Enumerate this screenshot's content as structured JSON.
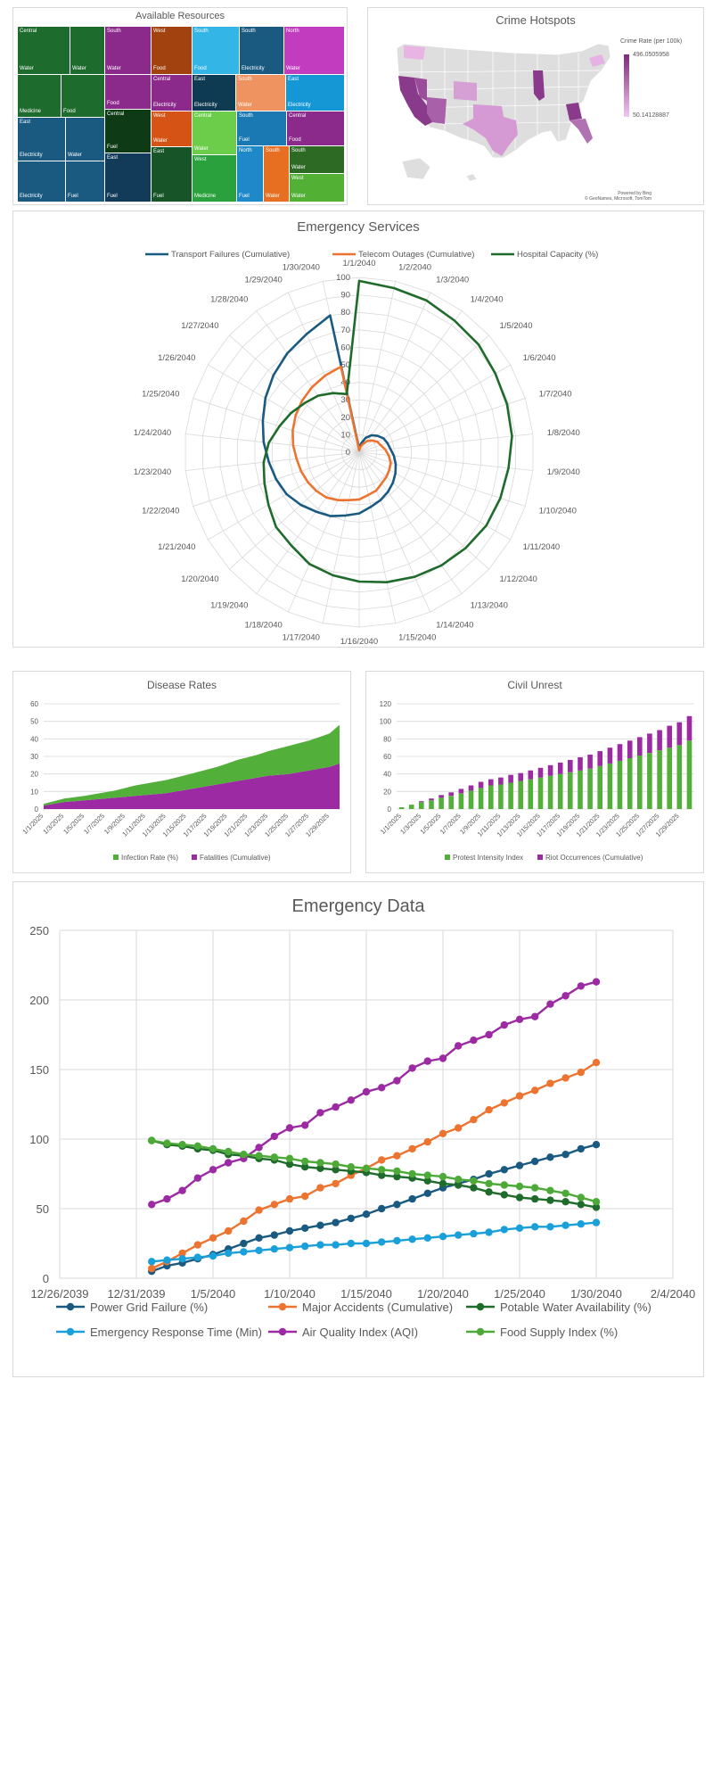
{
  "colors": {
    "region_green": "#1e6b2e",
    "region_purple": "#8b2a8b",
    "region_blue": "#1a5a80",
    "grid": "#d9d9d9",
    "axis_text": "#595959",
    "power": "#1a5a80",
    "accidents": "#ec7430",
    "water": "#1f6b2c",
    "response": "#1aa0d9",
    "aqi": "#9b2aa3",
    "food": "#4daa38",
    "hospital": "#1f6b2c",
    "infection": "#52b03a",
    "fatalities": "#9b2aa3",
    "map_land": "#dedede",
    "map_high": "#7b2c7b",
    "map_low": "#f2c6f0"
  },
  "treemap": {
    "title": "Available Resources",
    "tiles": [
      {
        "label": "Central",
        "sub": "Water",
        "color": "#1e6b2e"
      },
      {
        "label": "",
        "sub": "Water",
        "color": "#1e6b2e"
      },
      {
        "label": "South",
        "sub": "Water",
        "color": "#8b2a8b"
      },
      {
        "label": "West",
        "sub": "Food",
        "color": "#a1420f"
      },
      {
        "label": "South",
        "sub": "Food",
        "color": "#33b5e5"
      },
      {
        "label": "South",
        "sub": "Electricity",
        "color": "#1a5a80"
      },
      {
        "label": "North",
        "sub": "Water",
        "color": "#c23cc0"
      },
      {
        "label": "",
        "sub": "Medicine",
        "color": "#1e6b2e"
      },
      {
        "label": "",
        "sub": "Food",
        "color": "#1e6b2e"
      },
      {
        "label": "",
        "sub": "Food",
        "color": "#8b2a8b"
      },
      {
        "label": "Central",
        "sub": "Electricity",
        "color": "#8b2a8b"
      },
      {
        "label": "East",
        "sub": "Electricity",
        "color": "#0f3b52"
      },
      {
        "label": "South",
        "sub": "Water",
        "color": "#ef9460"
      },
      {
        "label": "East",
        "sub": "Electricity",
        "color": "#1597d6"
      },
      {
        "label": "East",
        "sub": "Electricity",
        "color": "#1a5a80"
      },
      {
        "label": "",
        "sub": "Water",
        "color": "#1a5a80"
      },
      {
        "label": "Central",
        "sub": "Fuel",
        "color": "#0e3a16"
      },
      {
        "label": "West",
        "sub": "Water",
        "color": "#d55315"
      },
      {
        "label": "Central",
        "sub": "Water",
        "color": "#6ccd4a"
      },
      {
        "label": "South",
        "sub": "Fuel",
        "color": "#1a79b3"
      },
      {
        "label": "Central",
        "sub": "Food",
        "color": "#8b2a8b"
      },
      {
        "label": "",
        "sub": "Electricity",
        "color": "#1a5a80"
      },
      {
        "label": "",
        "sub": "Fuel",
        "color": "#1a5a80"
      },
      {
        "label": "East",
        "sub": "Fuel",
        "color": "#123a59"
      },
      {
        "label": "East",
        "sub": "Fuel",
        "color": "#175528"
      },
      {
        "label": "West",
        "sub": "Medicine",
        "color": "#2aa13c"
      },
      {
        "label": "North",
        "sub": "Fuel",
        "color": "#1f88c8"
      },
      {
        "label": "South",
        "sub": "Water",
        "color": "#e76f22"
      },
      {
        "label": "South",
        "sub": "Water",
        "color": "#2d6a24"
      },
      {
        "label": "West",
        "sub": "Water",
        "color": "#52b035"
      }
    ]
  },
  "map": {
    "title": "Crime Hotspots",
    "legend_title": "Crime Rate (per 100k)",
    "legend_max": "496.0505958",
    "legend_min": "50.14128887",
    "credit1": "Powered by Bing",
    "credit2": "© GeoNames, Microsoft, TomTom"
  },
  "radar": {
    "title": "Emergency Services",
    "legend": [
      "Transport Failures (Cumulative)",
      "Telecom Outages (Cumulative)",
      "Hospital Capacity (%)"
    ],
    "rlabels": [
      "0",
      "10",
      "20",
      "30",
      "40",
      "50",
      "60",
      "70",
      "80",
      "90",
      "100"
    ],
    "dates": [
      "1/1/2040",
      "1/2/2040",
      "1/3/2040",
      "1/4/2040",
      "1/5/2040",
      "1/6/2040",
      "1/7/2040",
      "1/8/2040",
      "1/9/2040",
      "1/10/2040",
      "1/11/2040",
      "1/12/2040",
      "1/13/2040",
      "1/14/2040",
      "1/15/2040",
      "1/16/2040",
      "1/17/2040",
      "1/18/2040",
      "1/19/2040",
      "1/20/2040",
      "1/21/2040",
      "1/22/2040",
      "1/23/2040",
      "1/24/2040",
      "1/25/2040",
      "1/26/2040",
      "1/27/2040",
      "1/28/2040",
      "1/29/2040",
      "1/30/2040"
    ]
  },
  "disease": {
    "title": "Disease Rates",
    "yticks": [
      "0",
      "10",
      "20",
      "30",
      "40",
      "50",
      "60"
    ],
    "xticks": [
      "1/1/2025",
      "1/3/2025",
      "1/5/2025",
      "1/7/2025",
      "1/9/2025",
      "1/11/2025",
      "1/13/2025",
      "1/15/2025",
      "1/17/2025",
      "1/19/2025",
      "1/21/2025",
      "1/23/2025",
      "1/25/2025",
      "1/27/2025",
      "1/29/2025"
    ],
    "legend": [
      "Infection Rate (%)",
      "Fatalities (Cumulative)"
    ]
  },
  "unrest": {
    "title": "Civil Unrest",
    "yticks": [
      "0",
      "20",
      "40",
      "60",
      "80",
      "100",
      "120"
    ],
    "xticks": [
      "1/1/2025",
      "1/3/2025",
      "1/5/2025",
      "1/7/2025",
      "1/9/2025",
      "1/11/2025",
      "1/13/2025",
      "1/15/2025",
      "1/17/2025",
      "1/19/2025",
      "1/21/2025",
      "1/23/2025",
      "1/25/2025",
      "1/27/2025",
      "1/29/2025"
    ],
    "legend": [
      "Protest Intensity Index",
      "Riot Occurrences (Cumulative)"
    ]
  },
  "emergency": {
    "title": "Emergency Data",
    "yticks": [
      "0",
      "50",
      "100",
      "150",
      "200",
      "250"
    ],
    "xticks": [
      "12/26/2039",
      "12/31/2039",
      "1/5/2040",
      "1/10/2040",
      "1/15/2040",
      "1/20/2040",
      "1/25/2040",
      "1/30/2040",
      "2/4/2040"
    ],
    "legend": [
      "Power Grid Failure (%)",
      "Major Accidents (Cumulative)",
      "Potable Water Availability (%)",
      "Emergency Response Time (Min)",
      "Air Quality Index (AQI)",
      "Food Supply Index (%)"
    ]
  },
  "chart_data": [
    {
      "type": "treemap",
      "title": "Available Resources",
      "note": "hierarchical resource tiles by region and resource type"
    },
    {
      "type": "map",
      "title": "Crime Hotspots",
      "legend_title": "Crime Rate (per 100k)",
      "range": [
        50.14128887,
        496.0505958
      ],
      "highlighted_states": [
        "Washington",
        "California",
        "Nevada",
        "Arizona",
        "Colorado",
        "Texas",
        "Illinois",
        "Georgia",
        "Florida",
        "New York"
      ]
    },
    {
      "type": "radar",
      "title": "Emergency Services",
      "categories": [
        "1/1/2040",
        "1/2/2040",
        "1/3/2040",
        "1/4/2040",
        "1/5/2040",
        "1/6/2040",
        "1/7/2040",
        "1/8/2040",
        "1/9/2040",
        "1/10/2040",
        "1/11/2040",
        "1/12/2040",
        "1/13/2040",
        "1/14/2040",
        "1/15/2040",
        "1/16/2040",
        "1/17/2040",
        "1/18/2040",
        "1/19/2040",
        "1/20/2040",
        "1/21/2040",
        "1/22/2040",
        "1/23/2040",
        "1/24/2040",
        "1/25/2040",
        "1/26/2040",
        "1/27/2040",
        "1/28/2040",
        "1/29/2040",
        "1/30/2040"
      ],
      "rlim": [
        0,
        100
      ],
      "series": [
        {
          "name": "Transport Failures (Cumulative)",
          "values": [
            2,
            5,
            9,
            12,
            14,
            16,
            17,
            18,
            20,
            22,
            24,
            26,
            28,
            30,
            32,
            35,
            37,
            40,
            42,
            45,
            48,
            50,
            52,
            55,
            58,
            62,
            66,
            70,
            74,
            80
          ]
        },
        {
          "name": "Telecom Outages (Cumulative)",
          "values": [
            1,
            3,
            5,
            8,
            10,
            12,
            13,
            15,
            17,
            19,
            20,
            21,
            22,
            24,
            25,
            27,
            28,
            30,
            32,
            33,
            34,
            35,
            36,
            38,
            40,
            42,
            44,
            46,
            48,
            50
          ]
        },
        {
          "name": "Hospital Capacity (%)",
          "values": [
            98,
            96,
            95,
            93,
            92,
            90,
            89,
            88,
            86,
            85,
            84,
            82,
            80,
            78,
            76,
            74,
            72,
            70,
            66,
            64,
            60,
            57,
            55,
            52,
            48,
            45,
            42,
            40,
            37,
            34
          ]
        }
      ]
    },
    {
      "type": "area",
      "title": "Disease Rates",
      "x": [
        "1/1/2025",
        "1/2/2025",
        "1/3/2025",
        "1/4/2025",
        "1/5/2025",
        "1/6/2025",
        "1/7/2025",
        "1/8/2025",
        "1/9/2025",
        "1/10/2025",
        "1/11/2025",
        "1/12/2025",
        "1/13/2025",
        "1/14/2025",
        "1/15/2025",
        "1/16/2025",
        "1/17/2025",
        "1/18/2025",
        "1/19/2025",
        "1/20/2025",
        "1/21/2025",
        "1/22/2025",
        "1/23/2025",
        "1/24/2025",
        "1/25/2025",
        "1/26/2025",
        "1/27/2025",
        "1/28/2025",
        "1/29/2025",
        "1/30/2025"
      ],
      "stacked": true,
      "ylim": [
        0,
        60
      ],
      "series": [
        {
          "name": "Infection Rate (%)",
          "values": [
            1,
            1.5,
            2,
            2.2,
            2.5,
            3,
            3.5,
            4,
            5,
            6,
            6.5,
            7,
            7.5,
            8,
            8.5,
            9,
            9.5,
            10,
            11,
            12,
            12.5,
            13,
            14,
            15,
            16,
            16.5,
            17,
            18,
            19,
            22
          ]
        },
        {
          "name": "Fatalities (Cumulative)",
          "values": [
            2,
            3,
            4,
            4.5,
            5,
            5.5,
            6,
            6.5,
            7,
            7.5,
            8,
            8.5,
            9,
            10,
            11,
            12,
            13,
            14,
            15,
            16,
            17,
            18,
            19,
            19.5,
            20,
            21,
            22,
            23,
            24,
            26
          ]
        }
      ]
    },
    {
      "type": "bar",
      "title": "Civil Unrest",
      "stacked": true,
      "ylim": [
        0,
        120
      ],
      "categories": [
        "1/1/2025",
        "1/2/2025",
        "1/3/2025",
        "1/4/2025",
        "1/5/2025",
        "1/6/2025",
        "1/7/2025",
        "1/8/2025",
        "1/9/2025",
        "1/10/2025",
        "1/11/2025",
        "1/12/2025",
        "1/13/2025",
        "1/14/2025",
        "1/15/2025",
        "1/16/2025",
        "1/17/2025",
        "1/18/2025",
        "1/19/2025",
        "1/20/2025",
        "1/21/2025",
        "1/22/2025",
        "1/23/2025",
        "1/24/2025",
        "1/25/2025",
        "1/26/2025",
        "1/27/2025",
        "1/28/2025",
        "1/29/2025",
        "1/30/2025"
      ],
      "series": [
        {
          "name": "Protest Intensity Index",
          "values": [
            2,
            5,
            8,
            10,
            13,
            15,
            18,
            21,
            24,
            27,
            28,
            30,
            32,
            34,
            36,
            38,
            40,
            42,
            44,
            46,
            49,
            52,
            55,
            58,
            61,
            64,
            67,
            70,
            73,
            78
          ]
        },
        {
          "name": "Riot Occurrences (Cumulative)",
          "values": [
            0,
            0,
            1,
            2,
            3,
            4,
            5,
            6,
            7,
            7,
            8,
            9,
            9,
            10,
            11,
            12,
            13,
            14,
            15,
            16,
            17,
            18,
            19,
            20,
            21,
            22,
            23,
            25,
            26,
            28
          ]
        }
      ]
    },
    {
      "type": "line",
      "title": "Emergency Data",
      "ylim": [
        0,
        250
      ],
      "x": [
        "1/1/2040",
        "1/2/2040",
        "1/3/2040",
        "1/4/2040",
        "1/5/2040",
        "1/6/2040",
        "1/7/2040",
        "1/8/2040",
        "1/9/2040",
        "1/10/2040",
        "1/11/2040",
        "1/12/2040",
        "1/13/2040",
        "1/14/2040",
        "1/15/2040",
        "1/16/2040",
        "1/17/2040",
        "1/18/2040",
        "1/19/2040",
        "1/20/2040",
        "1/21/2040",
        "1/22/2040",
        "1/23/2040",
        "1/24/2040",
        "1/25/2040",
        "1/26/2040",
        "1/27/2040",
        "1/28/2040",
        "1/29/2040",
        "1/30/2040"
      ],
      "series": [
        {
          "name": "Power Grid Failure (%)",
          "values": [
            5,
            9,
            11,
            14,
            17,
            21,
            25,
            29,
            31,
            34,
            36,
            38,
            40,
            43,
            46,
            50,
            53,
            57,
            61,
            65,
            68,
            71,
            75,
            78,
            81,
            84,
            87,
            89,
            93,
            96
          ]
        },
        {
          "name": "Major Accidents (Cumulative)",
          "values": [
            7,
            12,
            18,
            24,
            29,
            34,
            41,
            49,
            53,
            57,
            59,
            65,
            68,
            74,
            79,
            85,
            88,
            93,
            98,
            104,
            108,
            114,
            121,
            126,
            131,
            135,
            140,
            144,
            148,
            155
          ]
        },
        {
          "name": "Potable Water Availability (%)",
          "values": [
            99,
            96,
            95,
            93,
            92,
            89,
            88,
            86,
            85,
            82,
            80,
            79,
            78,
            77,
            76,
            74,
            73,
            72,
            70,
            68,
            67,
            65,
            62,
            60,
            58,
            57,
            56,
            55,
            53,
            51
          ]
        },
        {
          "name": "Emergency Response Time (Min)",
          "values": [
            12,
            13,
            14,
            15,
            16,
            18,
            19,
            20,
            21,
            22,
            23,
            24,
            24,
            25,
            25,
            26,
            27,
            28,
            29,
            30,
            31,
            32,
            33,
            35,
            36,
            37,
            37,
            38,
            39,
            40
          ]
        },
        {
          "name": "Air Quality Index (AQI)",
          "values": [
            53,
            57,
            63,
            72,
            78,
            83,
            86,
            94,
            102,
            108,
            110,
            119,
            123,
            128,
            134,
            137,
            142,
            151,
            156,
            158,
            167,
            171,
            175,
            182,
            186,
            188,
            197,
            203,
            210,
            213
          ]
        },
        {
          "name": "Food Supply Index (%)",
          "values": [
            99,
            97,
            96,
            95,
            93,
            91,
            89,
            88,
            87,
            86,
            84,
            83,
            82,
            80,
            79,
            78,
            77,
            75,
            74,
            73,
            71,
            70,
            68,
            67,
            66,
            65,
            63,
            61,
            58,
            55
          ]
        }
      ]
    }
  ]
}
